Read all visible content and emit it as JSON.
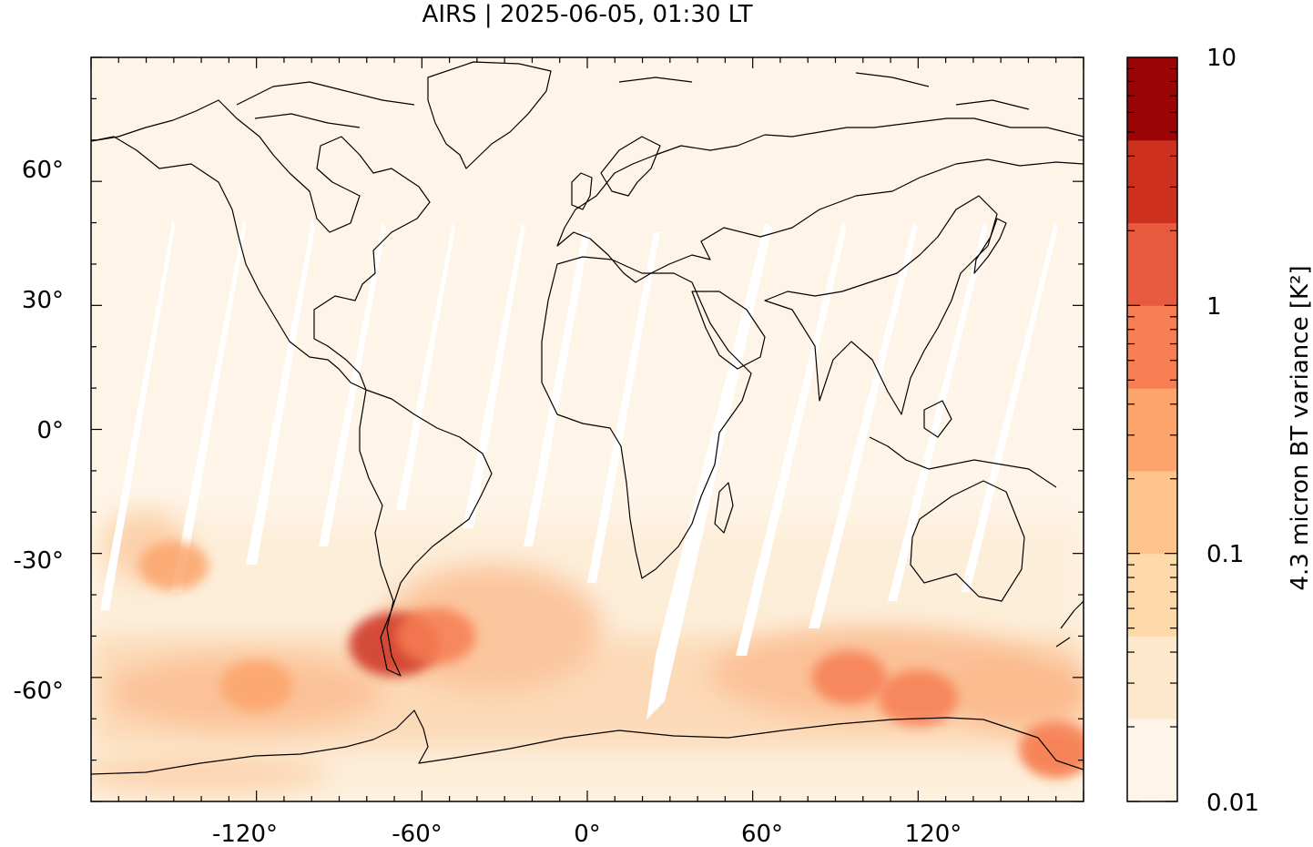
{
  "title": "AIRS | 2025-06-05, 01:30 LT",
  "chart_data": {
    "type": "heatmap",
    "title": "AIRS | 2025-06-05, 01:30 LT",
    "map_extent": {
      "lon": [
        -180,
        180
      ],
      "lat": [
        -90,
        90
      ]
    },
    "x_ticks": [
      {
        "value": -120,
        "label": "-120°"
      },
      {
        "value": -60,
        "label": "-60°"
      },
      {
        "value": 0,
        "label": "0°"
      },
      {
        "value": 60,
        "label": "60°"
      },
      {
        "value": 120,
        "label": "120°"
      }
    ],
    "y_ticks": [
      {
        "value": 60,
        "label": "60°"
      },
      {
        "value": 30,
        "label": "30°"
      },
      {
        "value": 0,
        "label": "0°"
      },
      {
        "value": -30,
        "label": "-30°"
      },
      {
        "value": -60,
        "label": "-60°"
      }
    ],
    "colorbar": {
      "label": "4.3 micron BT variance [K²]",
      "scale": "log",
      "range": [
        0.01,
        10
      ],
      "tick_labels": [
        {
          "value": 10,
          "label": "10"
        },
        {
          "value": 1,
          "label": "1"
        },
        {
          "value": 0.1,
          "label": "0.1"
        },
        {
          "value": 0.01,
          "label": "0.01"
        }
      ],
      "colors": [
        "#fef5e8",
        "#fde8cd",
        "#fdd8a9",
        "#fdc48b",
        "#fca46a",
        "#f77e52",
        "#e85a3e",
        "#ce3020",
        "#9c0505"
      ]
    },
    "hotspots": [
      {
        "lon": -70,
        "lat": -52,
        "value": 2.5
      },
      {
        "lon": -55,
        "lat": -50,
        "value": 0.8
      },
      {
        "lon": 120,
        "lat": -65,
        "value": 0.8
      },
      {
        "lon": 95,
        "lat": -60,
        "value": 0.5
      },
      {
        "lon": -120,
        "lat": -62,
        "value": 0.4
      },
      {
        "lon": 170,
        "lat": -77,
        "value": 0.5
      },
      {
        "lon": -150,
        "lat": -33,
        "value": 0.3
      }
    ]
  }
}
